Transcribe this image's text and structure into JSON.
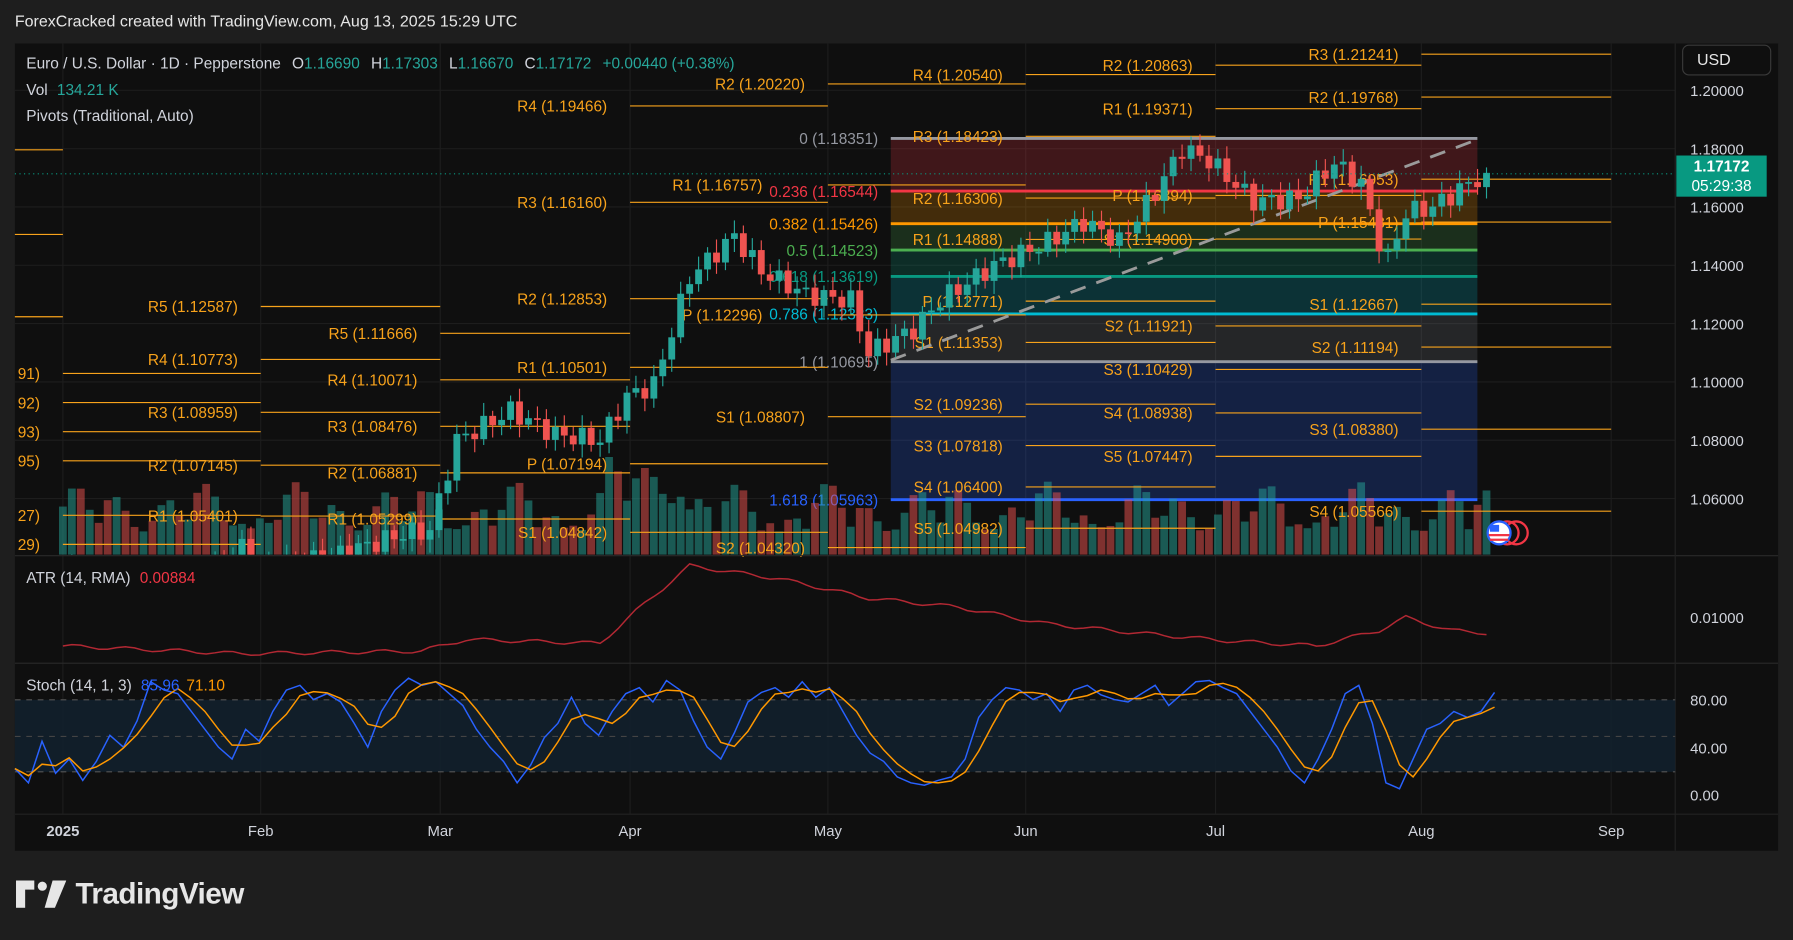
{
  "header": {
    "credit": "ForexCracked created with TradingView.com, Aug 13, 2025 15:29 UTC"
  },
  "legend": {
    "symbol": "Euro / U.S. Dollar · 1D · Pepperstone",
    "o_label": "O",
    "o": "1.16690",
    "h_label": "H",
    "h": "1.17303",
    "l_label": "L",
    "l": "1.16670",
    "c_label": "C",
    "c": "1.17172",
    "change": "+0.00440 (+0.38%)",
    "vol_label": "Vol",
    "vol": "134.21 K",
    "pivots": "Pivots (Traditional, Auto)",
    "atr_label": "ATR (14, RMA)",
    "atr": "0.00884",
    "stoch_label": "Stoch (14, 1, 3)",
    "stoch_k": "85.96",
    "stoch_d": "71.10"
  },
  "currency_button": "USD",
  "last_price": {
    "price": "1.17172",
    "countdown": "05:29:38"
  },
  "price_axis": [
    "1.20000",
    "1.18000",
    "1.16000",
    "1.14000",
    "1.12000",
    "1.10000",
    "1.08000",
    "1.06000"
  ],
  "atr_axis": [
    "0.01000"
  ],
  "stoch_axis": [
    "80.00",
    "40.00",
    "0.00"
  ],
  "time_axis": [
    "2025",
    "Feb",
    "Mar",
    "Apr",
    "May",
    "Jun",
    "Jul",
    "Aug",
    "Sep"
  ],
  "colors": {
    "up": "#26a69a",
    "down": "#ef5350",
    "pivot": "#f7a21b",
    "atr": "#b22833",
    "stoch_k": "#2962ff",
    "stoch_d": "#ff9800",
    "badge": "#089981"
  },
  "pivot_periods": [
    {
      "period": "Dec",
      "levels": [
        {
          "label": "",
          "value": 1.17961
        },
        {
          "label": "",
          "value": 1.15059
        },
        {
          "label": "",
          "value": 1.12235
        }
      ]
    },
    {
      "period": "Jan",
      "levels": [
        {
          "label": "91)",
          "value": 1.10291
        },
        {
          "label": "92)",
          "value": 1.09292
        },
        {
          "label": "93)",
          "value": 1.08293
        },
        {
          "label": "95)",
          "value": 1.07295
        },
        {
          "label": "27)",
          "value": 1.05427
        },
        {
          "label": "29)",
          "value": 1.04429
        }
      ]
    },
    {
      "period": "Feb",
      "levels": [
        {
          "label": "R5 (1.12587)",
          "value": 1.12587
        },
        {
          "label": "R4 (1.10773)",
          "value": 1.10773
        },
        {
          "label": "R3 (1.08959)",
          "value": 1.08959
        },
        {
          "label": "R2 (1.07145)",
          "value": 1.07145
        },
        {
          "label": "R1 (1.05401)",
          "value": 1.05401
        }
      ]
    },
    {
      "period": "Mar",
      "levels": [
        {
          "label": "R5 (1.11666)",
          "value": 1.11666
        },
        {
          "label": "R4 (1.10071)",
          "value": 1.10071
        },
        {
          "label": "R3 (1.08476)",
          "value": 1.08476
        },
        {
          "label": "R2 (1.06881)",
          "value": 1.06881
        },
        {
          "label": "R1 (1.05299)",
          "value": 1.05299
        }
      ]
    },
    {
      "period": "Apr",
      "levels": [
        {
          "label": "R4 (1.19466)",
          "value": 1.19466
        },
        {
          "label": "R3 (1.16160)",
          "value": 1.1616
        },
        {
          "label": "R2 (1.12853)",
          "value": 1.12853
        },
        {
          "label": "R1 (1.10501)",
          "value": 1.10501
        },
        {
          "label": "P (1.07194)",
          "value": 1.07194
        },
        {
          "label": "S1 (1.04842)",
          "value": 1.04842
        }
      ]
    },
    {
      "period": "May",
      "levels": [
        {
          "label": "R2 (1.20220)",
          "value": 1.2022
        },
        {
          "label": "R1 (1.16757)",
          "value": 1.16757
        },
        {
          "label": "P (1.12296)",
          "value": 1.12296
        },
        {
          "label": "S1 (1.08807)",
          "value": 1.08807
        },
        {
          "label": "S2 (1.04320)",
          "value": 1.0432
        }
      ]
    },
    {
      "period": "Jun",
      "levels": [
        {
          "label": "R4 (1.20540)",
          "value": 1.2054
        },
        {
          "label": "R3 (1.18423)",
          "value": 1.18423
        },
        {
          "label": "R2 (1.16306)",
          "value": 1.16306
        },
        {
          "label": "R1 (1.14888)",
          "value": 1.14888
        },
        {
          "label": "P (1.12771)",
          "value": 1.12771
        },
        {
          "label": "S1 (1.11353)",
          "value": 1.11353
        },
        {
          "label": "S2 (1.09236)",
          "value": 1.09236
        },
        {
          "label": "S3 (1.07818)",
          "value": 1.07818
        },
        {
          "label": "S4 (1.06400)",
          "value": 1.064
        },
        {
          "label": "S5 (1.04982)",
          "value": 1.04982
        }
      ]
    },
    {
      "period": "Jul",
      "levels": [
        {
          "label": "R2 (1.20863)",
          "value": 1.20863
        },
        {
          "label": "R1 (1.19371)",
          "value": 1.19371
        },
        {
          "label": "P (1.16394)",
          "value": 1.16394
        },
        {
          "label": "S1 (1.14900)",
          "value": 1.149
        },
        {
          "label": "S2 (1.11921)",
          "value": 1.11921
        },
        {
          "label": "S3 (1.10429)",
          "value": 1.10429
        },
        {
          "label": "S4 (1.08938)",
          "value": 1.08938
        },
        {
          "label": "S5 (1.07447)",
          "value": 1.07447
        }
      ]
    },
    {
      "period": "Aug",
      "levels": [
        {
          "label": "R3 (1.21241)",
          "value": 1.21241
        },
        {
          "label": "R2 (1.19768)",
          "value": 1.19768
        },
        {
          "label": "R1 (1.16953)",
          "value": 1.16953
        },
        {
          "label": "P (1.15481)",
          "value": 1.15481
        },
        {
          "label": "S1 (1.12667)",
          "value": 1.12667
        },
        {
          "label": "S2 (1.11194)",
          "value": 1.11194
        },
        {
          "label": "S3 (1.08380)",
          "value": 1.0838
        },
        {
          "label": "S4 (1.05566)",
          "value": 1.05566
        }
      ]
    }
  ],
  "fib_levels": [
    {
      "label": "0 (1.18351)",
      "value": 1.18351,
      "color": "#9598a1",
      "fill": "rgba(242,54,69,0.22)"
    },
    {
      "label": "0.236 (1.16544)",
      "value": 1.16544,
      "color": "#f23645",
      "fill": "rgba(255,152,0,0.22)"
    },
    {
      "label": "0.382 (1.15426)",
      "value": 1.15426,
      "color": "#ff9800",
      "fill": "rgba(76,175,80,0.2)"
    },
    {
      "label": "0.5 (1.14523)",
      "value": 1.14523,
      "color": "#4caf50",
      "fill": "rgba(8,153,129,0.22)"
    },
    {
      "label": "0.618 (1.13619)",
      "value": 1.13619,
      "color": "#089981",
      "fill": "rgba(0,188,212,0.2)"
    },
    {
      "label": "0.786 (1.12333)",
      "value": 1.12333,
      "color": "#00bcd4",
      "fill": "rgba(120,123,134,0.22)"
    },
    {
      "label": "1 (1.10695)",
      "value": 1.10695,
      "color": "#9598a1",
      "fill": "rgba(41,98,255,0.22)"
    },
    {
      "label": "1.618 (1.05963)",
      "value": 1.05963,
      "color": "#2962ff",
      "fill": ""
    }
  ],
  "price_path": [
    [
      0,
      1.035
    ],
    [
      9,
      1.025
    ],
    [
      15,
      1.03
    ],
    [
      20,
      1.043
    ],
    [
      22,
      1.035
    ],
    [
      30,
      1.04
    ],
    [
      38,
      1.048
    ],
    [
      41,
      1.049
    ],
    [
      44,
      1.08
    ],
    [
      50,
      1.09
    ],
    [
      55,
      1.082
    ],
    [
      60,
      1.08
    ],
    [
      63,
      1.095
    ],
    [
      66,
      1.099
    ],
    [
      70,
      1.136
    ],
    [
      75,
      1.15
    ],
    [
      78,
      1.138
    ],
    [
      83,
      1.13
    ],
    [
      88,
      1.128
    ],
    [
      90,
      1.11
    ],
    [
      95,
      1.118
    ],
    [
      98,
      1.128
    ],
    [
      104,
      1.14
    ],
    [
      110,
      1.148
    ],
    [
      114,
      1.155
    ],
    [
      118,
      1.148
    ],
    [
      122,
      1.165
    ],
    [
      125,
      1.18
    ],
    [
      128,
      1.176
    ],
    [
      133,
      1.162
    ],
    [
      138,
      1.163
    ],
    [
      142,
      1.175
    ],
    [
      145,
      1.168
    ],
    [
      147,
      1.148
    ],
    [
      148,
      1.142
    ],
    [
      150,
      1.158
    ],
    [
      153,
      1.16
    ],
    [
      156,
      1.166
    ],
    [
      159,
      1.1717
    ]
  ],
  "atr_path": [
    [
      0,
      0.0078
    ],
    [
      20,
      0.0072
    ],
    [
      40,
      0.0074
    ],
    [
      45,
      0.0083
    ],
    [
      60,
      0.008
    ],
    [
      64,
      0.0105
    ],
    [
      70,
      0.014
    ],
    [
      80,
      0.013
    ],
    [
      90,
      0.0115
    ],
    [
      100,
      0.0108
    ],
    [
      110,
      0.0095
    ],
    [
      120,
      0.0088
    ],
    [
      130,
      0.0082
    ],
    [
      140,
      0.0078
    ],
    [
      147,
      0.009
    ],
    [
      150,
      0.01
    ],
    [
      155,
      0.009
    ],
    [
      159,
      0.0088
    ]
  ],
  "stoch_k": [
    22,
    10,
    45,
    18,
    30,
    12,
    28,
    50,
    40,
    62,
    95,
    88,
    85,
    70,
    55,
    40,
    30,
    55,
    45,
    70,
    88,
    92,
    80,
    85,
    78,
    60,
    40,
    70,
    88,
    98,
    92,
    95,
    85,
    75,
    55,
    40,
    28,
    10,
    25,
    48,
    60,
    82,
    60,
    50,
    70,
    85,
    90,
    78,
    96,
    88,
    62,
    40,
    30,
    52,
    78,
    86,
    90,
    82,
    95,
    82,
    90,
    70,
    50,
    35,
    28,
    15,
    10,
    8,
    12,
    15,
    30,
    65,
    80,
    90,
    88,
    80,
    85,
    70,
    88,
    92,
    84,
    80,
    78,
    85,
    92,
    75,
    85,
    95,
    96,
    90,
    85,
    70,
    55,
    40,
    20,
    10,
    30,
    55,
    85,
    92,
    60,
    10,
    5,
    30,
    55,
    60,
    70,
    65,
    70,
    86
  ]
}
